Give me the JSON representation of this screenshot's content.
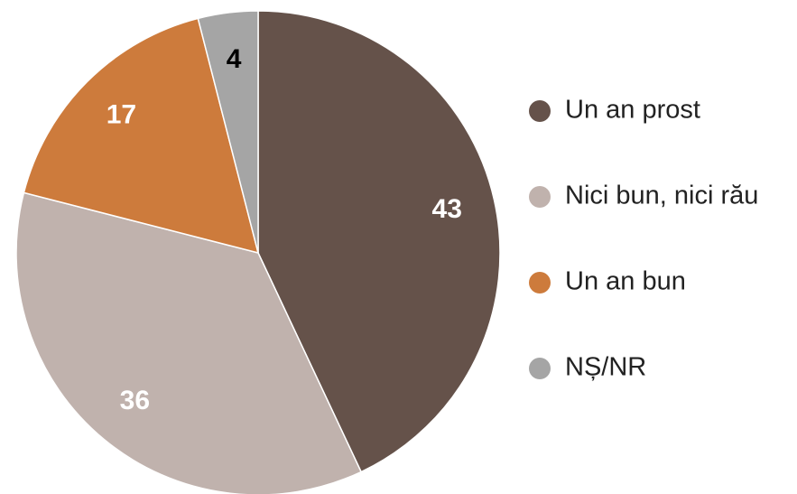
{
  "chart_data": {
    "type": "pie",
    "categories": [
      "Un an prost",
      "Nici bun, nici rău",
      "Un an bun",
      "NȘ/NR"
    ],
    "values": [
      43,
      36,
      17,
      4
    ],
    "colors": [
      "#65524a",
      "#c0b2ad",
      "#cd7b3c",
      "#a5a5a5"
    ],
    "label_colors": [
      "#ffffff",
      "#ffffff",
      "#ffffff",
      "#000000"
    ],
    "legend": "right"
  }
}
